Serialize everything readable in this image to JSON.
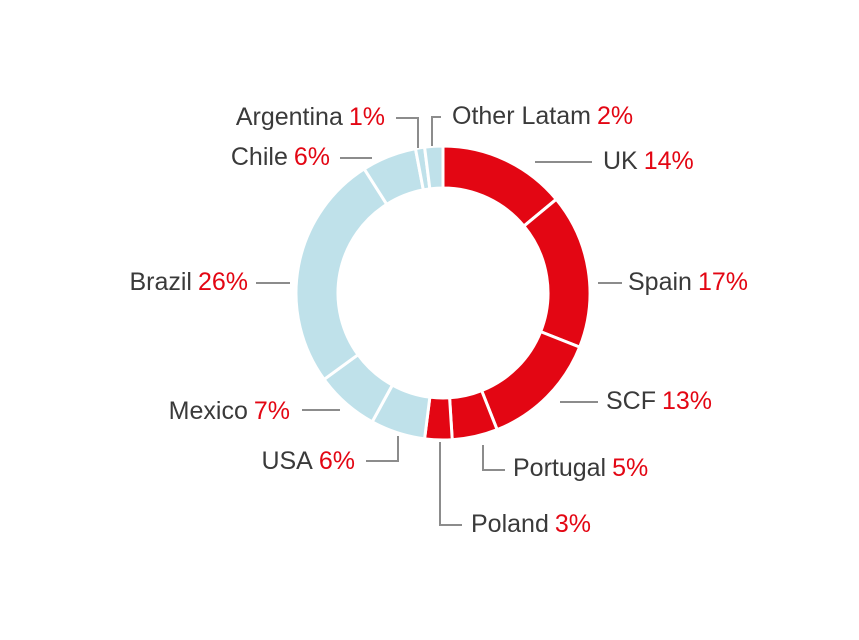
{
  "chart_data": {
    "type": "donut",
    "categories": [
      "UK",
      "Spain",
      "SCF",
      "Portugal",
      "Poland",
      "USA",
      "Mexico",
      "Brazil",
      "Chile",
      "Argentina",
      "Other Latam"
    ],
    "values": [
      14,
      17,
      13,
      5,
      3,
      6,
      7,
      26,
      6,
      1,
      2
    ],
    "value_labels": [
      "14%",
      "17%",
      "13%",
      "5%",
      "3%",
      "6%",
      "7%",
      "26%",
      "6%",
      "1%",
      "2%"
    ],
    "colors": [
      "#e30613",
      "#e30613",
      "#e30613",
      "#e30613",
      "#e30613",
      "#bfe1ea",
      "#bfe1ea",
      "#bfe1ea",
      "#bfe1ea",
      "#bfe1ea",
      "#bfe1ea"
    ]
  }
}
